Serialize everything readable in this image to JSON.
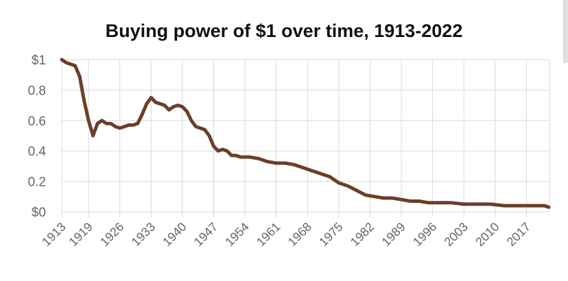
{
  "chart_data": {
    "type": "line",
    "title": "Buying power of $1 over time, 1913-2022",
    "xlabel": "",
    "ylabel": "",
    "xlim": [
      1913,
      2022
    ],
    "ylim": [
      0,
      1
    ],
    "grid": true,
    "legend": "none",
    "line_color": "#6b3f2a",
    "y_ticks": [
      {
        "value": 1,
        "label": "$1"
      },
      {
        "value": 0.8,
        "label": "0.8"
      },
      {
        "value": 0.6,
        "label": "0.6"
      },
      {
        "value": 0.4,
        "label": "0.4"
      },
      {
        "value": 0.2,
        "label": "0.2"
      },
      {
        "value": 0,
        "label": "$0"
      }
    ],
    "x_ticks": [
      1913,
      1919,
      1926,
      1933,
      1940,
      1947,
      1954,
      1961,
      1968,
      1975,
      1982,
      1989,
      1996,
      2003,
      2010,
      2017
    ],
    "series": [
      {
        "x": [
          1913,
          1914,
          1915,
          1916,
          1917,
          1918,
          1919,
          1920,
          1921,
          1922,
          1923,
          1924,
          1925,
          1926,
          1927,
          1928,
          1929,
          1930,
          1931,
          1932,
          1933,
          1934,
          1935,
          1936,
          1937,
          1938,
          1939,
          1940,
          1941,
          1942,
          1943,
          1944,
          1945,
          1946,
          1947,
          1948,
          1949,
          1950,
          1951,
          1952,
          1953,
          1955,
          1957,
          1959,
          1961,
          1963,
          1965,
          1967,
          1969,
          1971,
          1973,
          1975,
          1977,
          1979,
          1981,
          1983,
          1985,
          1987,
          1989,
          1991,
          1993,
          1995,
          1997,
          2000,
          2003,
          2006,
          2009,
          2012,
          2015,
          2018,
          2021,
          2022
        ],
        "y": [
          1.0,
          0.98,
          0.97,
          0.96,
          0.89,
          0.73,
          0.6,
          0.5,
          0.58,
          0.6,
          0.58,
          0.58,
          0.56,
          0.55,
          0.56,
          0.57,
          0.57,
          0.58,
          0.64,
          0.71,
          0.75,
          0.72,
          0.71,
          0.7,
          0.67,
          0.69,
          0.7,
          0.69,
          0.66,
          0.6,
          0.56,
          0.55,
          0.54,
          0.5,
          0.43,
          0.4,
          0.41,
          0.4,
          0.37,
          0.37,
          0.36,
          0.36,
          0.35,
          0.33,
          0.32,
          0.32,
          0.31,
          0.29,
          0.27,
          0.25,
          0.23,
          0.19,
          0.17,
          0.14,
          0.11,
          0.1,
          0.09,
          0.09,
          0.08,
          0.07,
          0.07,
          0.06,
          0.06,
          0.06,
          0.05,
          0.05,
          0.05,
          0.04,
          0.04,
          0.04,
          0.04,
          0.03
        ]
      }
    ]
  }
}
